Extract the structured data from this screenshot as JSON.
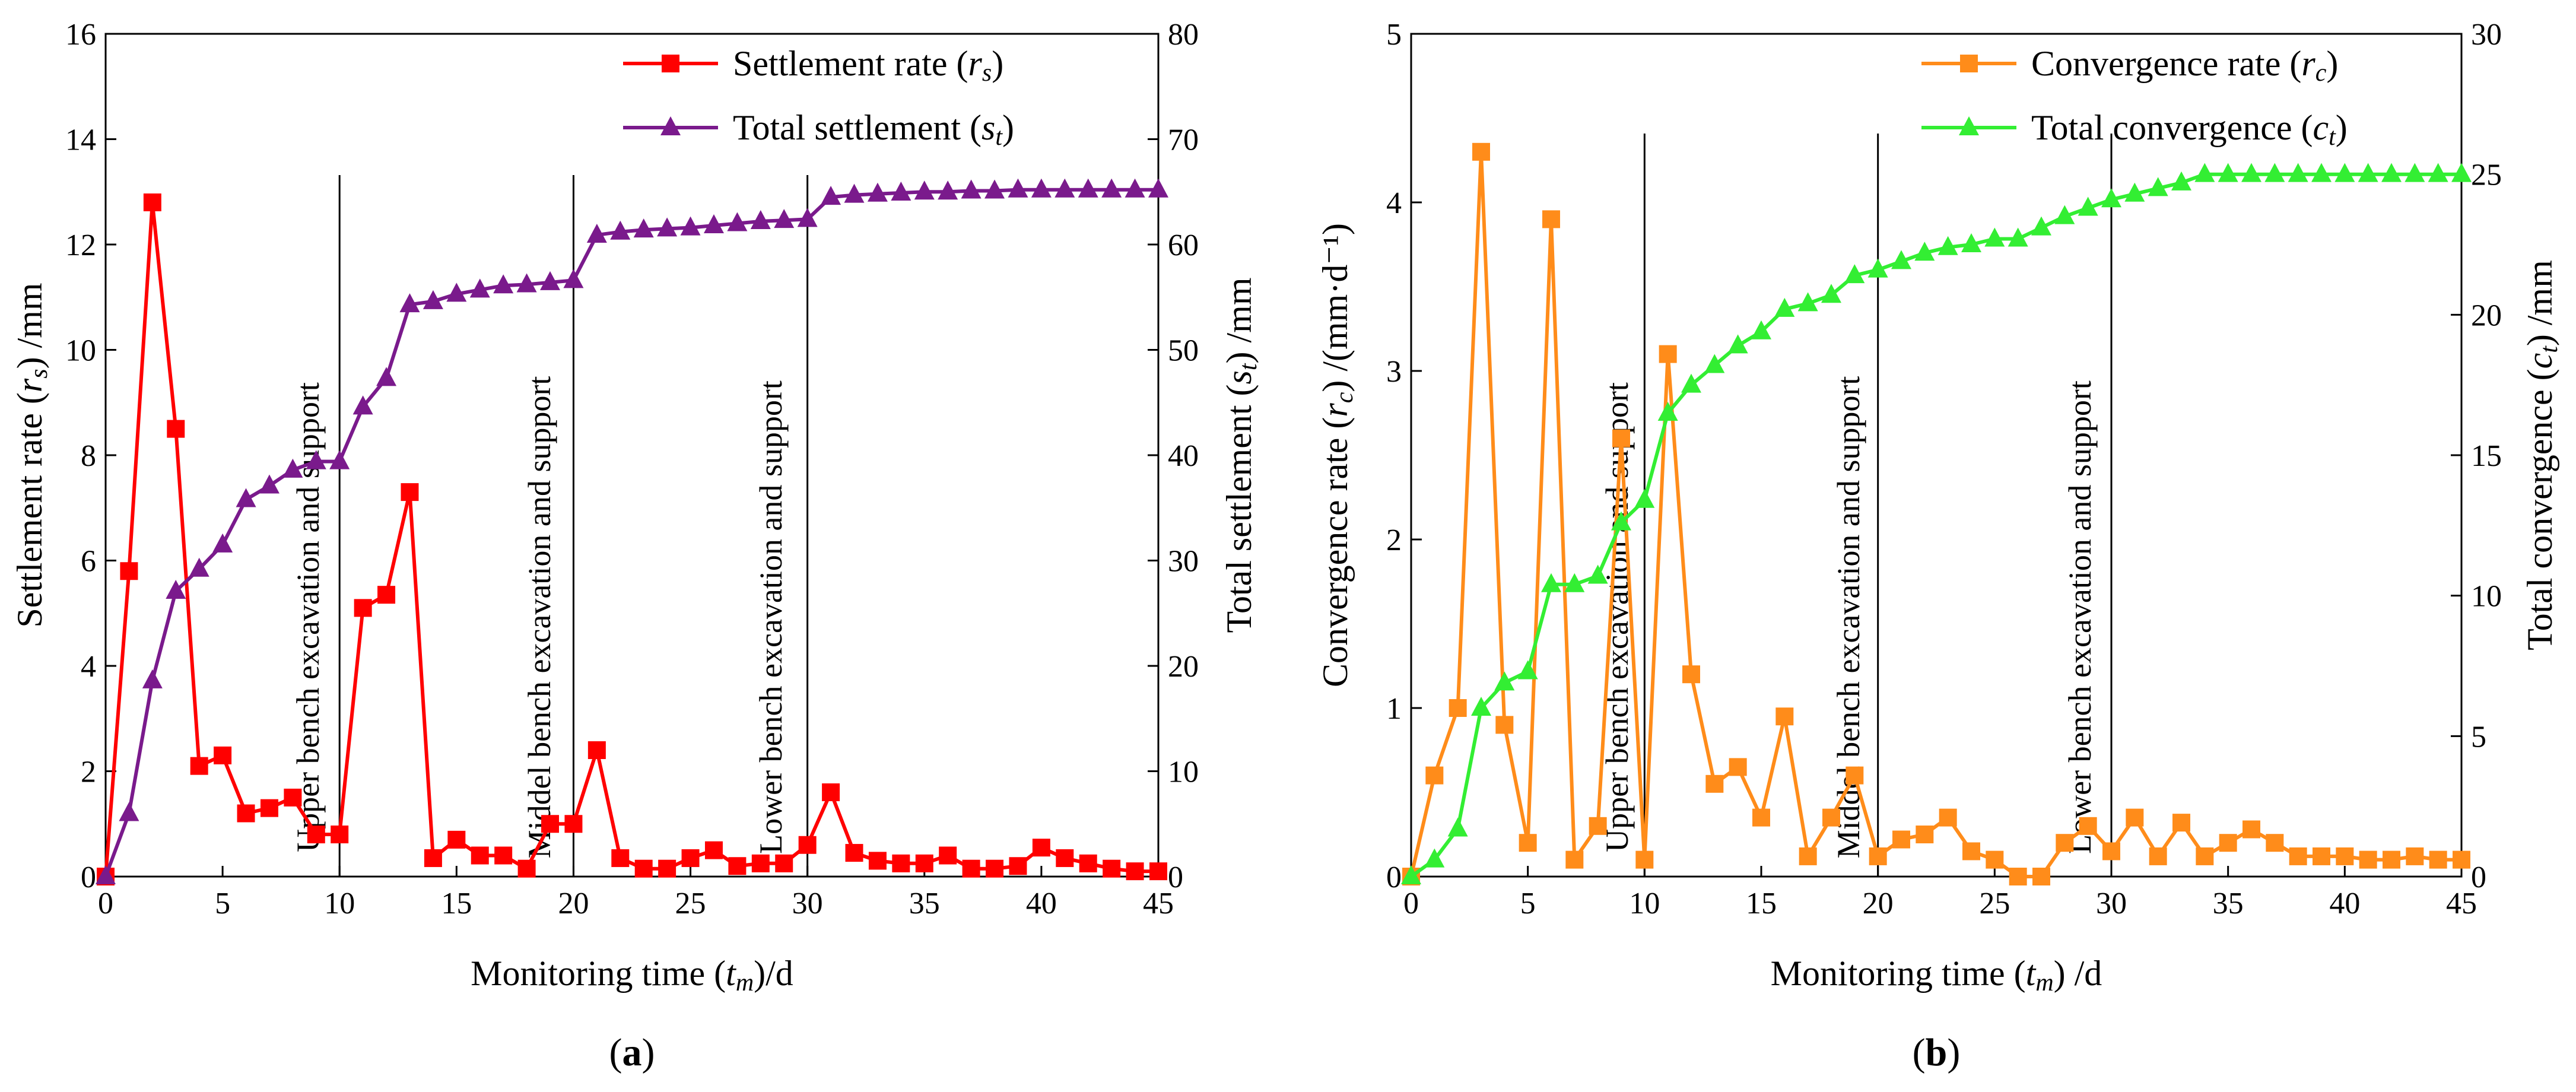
{
  "chart_data": [
    {
      "type": "line",
      "panel_label": "(a)",
      "panel_letter": "a",
      "x": [
        0,
        1,
        2,
        3,
        4,
        5,
        6,
        7,
        8,
        9,
        10,
        11,
        12,
        13,
        14,
        15,
        16,
        17,
        18,
        19,
        20,
        21,
        22,
        23,
        24,
        25,
        26,
        27,
        28,
        29,
        30,
        31,
        32,
        33,
        34,
        35,
        36,
        37,
        38,
        39,
        40,
        41,
        42,
        43,
        44,
        45
      ],
      "xlim": [
        0,
        45
      ],
      "xticks": [
        0,
        5,
        10,
        15,
        20,
        25,
        30,
        35,
        40,
        45
      ],
      "xlabel": {
        "pre": "Monitoring time (",
        "var": "t",
        "sub": "m",
        "post": ")/d"
      },
      "ylabel_left": {
        "pre": "Settlement rate (",
        "var": "r",
        "sub": "s",
        "post": ") /mm"
      },
      "ylabel_right": {
        "pre": "Total settlement (",
        "var": "s",
        "sub": "t",
        "post": ") /mm"
      },
      "ylim_left": [
        0,
        16
      ],
      "yticks_left": [
        0,
        2,
        4,
        6,
        8,
        10,
        12,
        14,
        16
      ],
      "ylim_right": [
        0,
        80
      ],
      "yticks_right": [
        0,
        10,
        20,
        30,
        40,
        50,
        60,
        70,
        80
      ],
      "legend_position": "top-right",
      "series": [
        {
          "name": "Settlement rate (rs)",
          "legend": {
            "pre": "Settlement rate (",
            "var": "r",
            "sub": "s",
            "post": ")"
          },
          "axis": "left",
          "marker": "square",
          "color": "#ff0000",
          "values": [
            0,
            5.8,
            12.8,
            8.5,
            2.1,
            2.3,
            1.2,
            1.3,
            1.5,
            0.8,
            0.8,
            5.1,
            5.35,
            7.3,
            0.35,
            0.7,
            0.4,
            0.4,
            0.15,
            1.0,
            1.0,
            2.4,
            0.35,
            0.15,
            0.15,
            0.35,
            0.5,
            0.2,
            0.25,
            0.25,
            0.6,
            1.6,
            0.45,
            0.3,
            0.25,
            0.25,
            0.4,
            0.15,
            0.15,
            0.2,
            0.55,
            0.35,
            0.25,
            0.15,
            0.1,
            0.1
          ]
        },
        {
          "name": "Total settlement (st)",
          "legend": {
            "pre": "Total settlement (",
            "var": "s",
            "sub": "t",
            "post": ")"
          },
          "axis": "right",
          "marker": "triangle",
          "color": "#7a1a8c",
          "values": [
            0,
            6,
            18.6,
            27.1,
            29.2,
            31.5,
            35.8,
            37.1,
            38.6,
            39.4,
            39.4,
            44.6,
            47.3,
            54.3,
            54.6,
            55.3,
            55.7,
            56.1,
            56.2,
            56.4,
            56.6,
            60.9,
            61.2,
            61.4,
            61.5,
            61.6,
            61.8,
            62.0,
            62.2,
            62.3,
            62.4,
            64.5,
            64.7,
            64.8,
            64.9,
            65.0,
            65.0,
            65.1,
            65.1,
            65.2,
            65.2,
            65.2,
            65.2,
            65.2,
            65.2,
            65.2
          ]
        }
      ],
      "annotations": [
        {
          "x": 10,
          "label": "Upper bench excavation and support"
        },
        {
          "x": 20,
          "label": "Middel bench excavation and support"
        },
        {
          "x": 30,
          "label": "Lower bench excavation and support"
        }
      ]
    },
    {
      "type": "line",
      "panel_label": "(b)",
      "panel_letter": "b",
      "x": [
        0,
        1,
        2,
        3,
        4,
        5,
        6,
        7,
        8,
        9,
        10,
        11,
        12,
        13,
        14,
        15,
        16,
        17,
        18,
        19,
        20,
        21,
        22,
        23,
        24,
        25,
        26,
        27,
        28,
        29,
        30,
        31,
        32,
        33,
        34,
        35,
        36,
        37,
        38,
        39,
        40,
        41,
        42,
        43,
        44,
        45
      ],
      "xlim": [
        0,
        45
      ],
      "xticks": [
        0,
        5,
        10,
        15,
        20,
        25,
        30,
        35,
        40,
        45
      ],
      "xlabel": {
        "pre": "Monitoring time (",
        "var": "t",
        "sub": "m",
        "post": ") /d"
      },
      "ylabel_left": {
        "pre": "Convergence rate (",
        "var": "r",
        "sub": "c",
        "post": ") /(mm·d⁻¹)"
      },
      "ylabel_right": {
        "pre": "Total convergence (",
        "var": "c",
        "sub": "t",
        "post": ") /mm"
      },
      "ylim_left": [
        0,
        5
      ],
      "yticks_left": [
        0,
        1,
        2,
        3,
        4,
        5
      ],
      "ylim_right": [
        0,
        30
      ],
      "yticks_right": [
        0,
        5,
        10,
        15,
        20,
        25,
        30
      ],
      "legend_position": "top-right",
      "series": [
        {
          "name": "Convergence rate (rc)",
          "legend": {
            "pre": "Convergence rate (",
            "var": "r",
            "sub": "c",
            "post": ")"
          },
          "axis": "left",
          "marker": "square",
          "color": "#ff8c1a",
          "values": [
            0,
            0.6,
            1.0,
            4.3,
            0.9,
            0.2,
            3.9,
            0.1,
            0.3,
            2.6,
            0.1,
            3.1,
            1.2,
            0.55,
            0.65,
            0.35,
            0.95,
            0.12,
            0.35,
            0.6,
            0.12,
            0.22,
            0.25,
            0.35,
            0.15,
            0.1,
            0.0,
            0.0,
            0.2,
            0.3,
            0.15,
            0.35,
            0.12,
            0.32,
            0.12,
            0.2,
            0.28,
            0.2,
            0.12,
            0.12,
            0.12,
            0.1,
            0.1,
            0.12,
            0.1,
            0.1
          ]
        },
        {
          "name": "Total convergence (ct)",
          "legend": {
            "pre": "Total convergence (",
            "var": "c",
            "sub": "t",
            "post": ")"
          },
          "axis": "right",
          "marker": "triangle",
          "color": "#33ee33",
          "values": [
            0,
            0.6,
            1.7,
            6.0,
            6.9,
            7.3,
            10.4,
            10.4,
            10.7,
            12.6,
            13.4,
            16.5,
            17.5,
            18.2,
            18.9,
            19.4,
            20.2,
            20.4,
            20.7,
            21.4,
            21.6,
            21.9,
            22.2,
            22.4,
            22.5,
            22.7,
            22.7,
            23.1,
            23.5,
            23.8,
            24.1,
            24.3,
            24.5,
            24.7,
            25,
            25,
            25,
            25,
            25,
            25,
            25,
            25,
            25,
            25,
            25,
            25
          ]
        }
      ],
      "annotations": [
        {
          "x": 10,
          "label": "Upper bench excavation and support"
        },
        {
          "x": 20,
          "label": "Middel bench excavation and support"
        },
        {
          "x": 30,
          "label": "Lower bench excavation and support"
        }
      ]
    }
  ]
}
